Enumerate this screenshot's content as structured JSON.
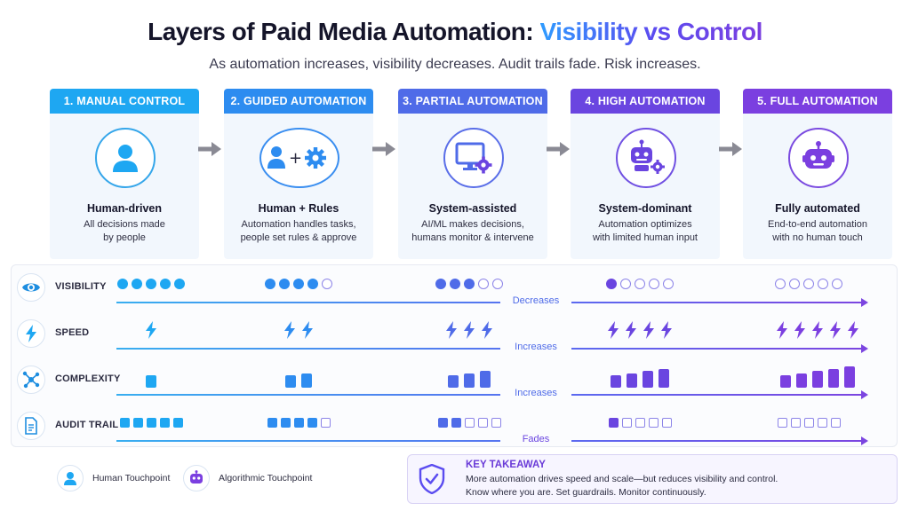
{
  "header": {
    "title_main": "Layers of Paid Media Automation: ",
    "title_accent": "Visibility vs Control",
    "subtitle": "As automation increases, visibility decreases. Audit trails fade. Risk increases."
  },
  "colors": {
    "stage_headers": [
      "#1ea7f2",
      "#2d8cf0",
      "#4f6be8",
      "#6a45e0",
      "#7b3fe0"
    ],
    "human": "#1ea7f2",
    "robot": "#6a45e0",
    "empty_stroke": "#8c84e8"
  },
  "stages": [
    {
      "header": "1. MANUAL CONTROL",
      "icon": "person-icon",
      "name": "Human-driven",
      "desc": [
        "All decisions made",
        "by people"
      ]
    },
    {
      "header": "2. GUIDED AUTOMATION",
      "icon": "person-plus-gear-icon",
      "name": "Human + Rules",
      "desc": [
        "Automation handles tasks,",
        "people set rules & approve"
      ]
    },
    {
      "header": "3. PARTIAL AUTOMATION",
      "icon": "monitor-gear-icon",
      "name": "System-assisted",
      "desc": [
        "AI/ML makes decisions,",
        "humans monitor & intervene"
      ]
    },
    {
      "header": "4. HIGH AUTOMATION",
      "icon": "robot-gears-icon",
      "name": "System-dominant",
      "desc": [
        "Automation optimizes",
        "with limited human input"
      ]
    },
    {
      "header": "5. FULL AUTOMATION",
      "icon": "robot-icon",
      "name": "Fully automated",
      "desc": [
        "End-to-end automation",
        "with no human touch"
      ]
    }
  ],
  "metrics": [
    {
      "label": "VISIBILITY",
      "icon": "eye-icon",
      "trend": "Decreases",
      "kind": "dots",
      "values": [
        5,
        4,
        3,
        1,
        0
      ],
      "total": 5
    },
    {
      "label": "SPEED",
      "icon": "lightning-icon",
      "trend": "Increases",
      "kind": "bolts",
      "values": [
        1,
        2,
        3,
        4,
        5
      ]
    },
    {
      "label": "COMPLEXITY",
      "icon": "network-icon",
      "trend": "Increases",
      "kind": "bars",
      "values": [
        1,
        2,
        3,
        4,
        5
      ]
    },
    {
      "label": "AUDIT TRAIL",
      "icon": "document-icon",
      "trend": "Fades",
      "kind": "squares",
      "values": [
        5,
        4,
        2,
        1,
        0
      ],
      "total": 5
    }
  ],
  "legend": [
    {
      "label": "Human Touchpoint",
      "icon": "person-icon"
    },
    {
      "label": "Algorithmic Touchpoint",
      "icon": "robot-icon"
    }
  ],
  "takeaway": {
    "title": "KEY TAKEAWAY",
    "line1": "More automation drives speed and scale—but reduces visibility and control.",
    "line2": "Know where you are.  Set guardrails. Monitor continuously."
  }
}
